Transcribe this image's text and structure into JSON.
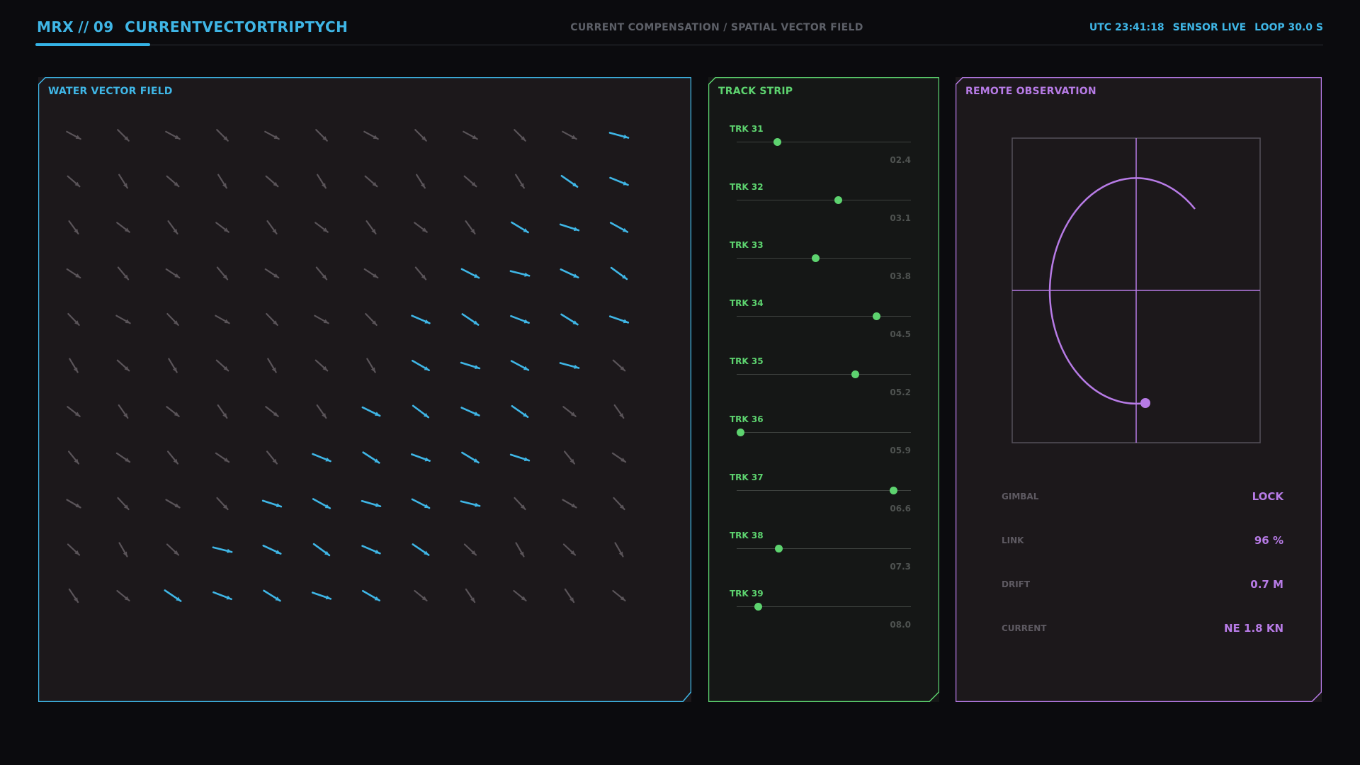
{
  "header": {
    "brand_code": "MRX",
    "brand_sep": "//",
    "brand_num": "09",
    "brand_name": "CURRENTVECTORTRIPTYCH",
    "subtitle": "CURRENT COMPENSATION / SPATIAL VECTOR FIELD",
    "utc": "UTC 23:41:18",
    "sensor": "SENSOR LIVE",
    "loop": "LOOP 30.0 S"
  },
  "colors": {
    "cyan": "#3fb6e6",
    "green": "#5dd36f",
    "purple": "#b77be6",
    "muted_arrow": "#5a5459"
  },
  "vector_panel": {
    "title": "WATER VECTOR FIELD",
    "grid": {
      "rows": 11,
      "cols": 12
    },
    "highlight_cells": [
      [
        0,
        11
      ],
      [
        1,
        10
      ],
      [
        1,
        11
      ],
      [
        2,
        9
      ],
      [
        2,
        10
      ],
      [
        2,
        11
      ],
      [
        3,
        8
      ],
      [
        3,
        9
      ],
      [
        3,
        10
      ],
      [
        3,
        11
      ],
      [
        4,
        7
      ],
      [
        4,
        8
      ],
      [
        4,
        9
      ],
      [
        4,
        10
      ],
      [
        4,
        11
      ],
      [
        5,
        7
      ],
      [
        5,
        8
      ],
      [
        5,
        9
      ],
      [
        5,
        10
      ],
      [
        6,
        6
      ],
      [
        6,
        7
      ],
      [
        6,
        8
      ],
      [
        6,
        9
      ],
      [
        7,
        5
      ],
      [
        7,
        6
      ],
      [
        7,
        7
      ],
      [
        7,
        8
      ],
      [
        7,
        9
      ],
      [
        8,
        4
      ],
      [
        8,
        5
      ],
      [
        8,
        6
      ],
      [
        8,
        7
      ],
      [
        8,
        8
      ],
      [
        9,
        3
      ],
      [
        9,
        4
      ],
      [
        9,
        5
      ],
      [
        9,
        6
      ],
      [
        9,
        7
      ],
      [
        10,
        2
      ],
      [
        10,
        3
      ],
      [
        10,
        4
      ],
      [
        10,
        5
      ],
      [
        10,
        6
      ]
    ]
  },
  "track_panel": {
    "title": "TRACK STRIP",
    "tracks": [
      {
        "label": "TRK 31",
        "value": "02.4",
        "pos": 0.23
      },
      {
        "label": "TRK 32",
        "value": "03.1",
        "pos": 0.58
      },
      {
        "label": "TRK 33",
        "value": "03.8",
        "pos": 0.45
      },
      {
        "label": "TRK 34",
        "value": "04.5",
        "pos": 0.8
      },
      {
        "label": "TRK 35",
        "value": "05.2",
        "pos": 0.68
      },
      {
        "label": "TRK 36",
        "value": "05.9",
        "pos": 0.02
      },
      {
        "label": "TRK 37",
        "value": "06.6",
        "pos": 0.9
      },
      {
        "label": "TRK 38",
        "value": "07.3",
        "pos": 0.24
      },
      {
        "label": "TRK 39",
        "value": "08.0",
        "pos": 0.12
      }
    ]
  },
  "remote_panel": {
    "title": "REMOTE OBSERVATION",
    "stats": [
      {
        "key": "GIMBAL",
        "value": "LOCK"
      },
      {
        "key": "LINK",
        "value": "96 %"
      },
      {
        "key": "DRIFT",
        "value": "0.7 M"
      },
      {
        "key": "CURRENT",
        "value": "NE 1.8 KN"
      }
    ]
  }
}
